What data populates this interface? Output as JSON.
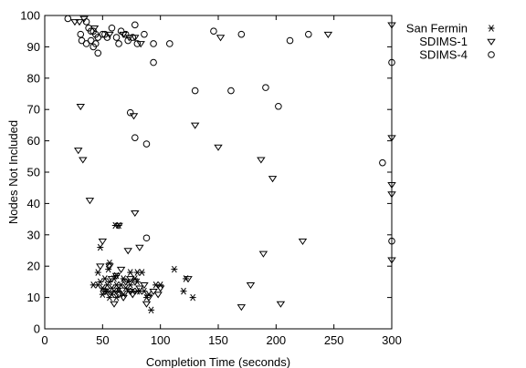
{
  "chart_data": {
    "type": "scatter",
    "title": "",
    "xlabel": "Completion Time (seconds)",
    "ylabel": "Nodes Not Included",
    "xlim": [
      0,
      300
    ],
    "ylim": [
      0,
      100
    ],
    "xticks": [
      0,
      50,
      100,
      150,
      200,
      250,
      300
    ],
    "yticks": [
      0,
      10,
      20,
      30,
      40,
      50,
      60,
      70,
      80,
      90,
      100
    ],
    "grid": false,
    "legend_position": "top-right",
    "series": [
      {
        "name": "San Fermin",
        "marker": "asterisk",
        "color": "#000000",
        "points": [
          [
            48,
            26
          ],
          [
            61,
            33
          ],
          [
            64,
            33
          ],
          [
            56,
            21
          ],
          [
            46,
            18
          ],
          [
            55,
            19
          ],
          [
            62,
            17
          ],
          [
            74,
            18
          ],
          [
            80,
            18
          ],
          [
            84,
            18
          ],
          [
            112,
            19
          ],
          [
            122,
            16
          ],
          [
            42,
            14
          ],
          [
            46,
            14
          ],
          [
            48,
            15
          ],
          [
            50,
            13
          ],
          [
            52,
            16
          ],
          [
            54,
            14
          ],
          [
            56,
            15
          ],
          [
            58,
            13
          ],
          [
            60,
            16
          ],
          [
            62,
            14
          ],
          [
            64,
            12
          ],
          [
            66,
            14
          ],
          [
            68,
            16
          ],
          [
            70,
            13
          ],
          [
            72,
            15
          ],
          [
            74,
            14
          ],
          [
            78,
            16
          ],
          [
            80,
            15
          ],
          [
            82,
            12
          ],
          [
            50,
            11
          ],
          [
            52,
            12
          ],
          [
            54,
            12
          ],
          [
            56,
            10
          ],
          [
            58,
            11
          ],
          [
            60,
            12
          ],
          [
            62,
            10
          ],
          [
            64,
            13
          ],
          [
            68,
            11
          ],
          [
            72,
            12
          ],
          [
            76,
            12
          ],
          [
            80,
            12
          ],
          [
            86,
            12
          ],
          [
            90,
            11
          ],
          [
            96,
            14
          ],
          [
            100,
            14
          ],
          [
            120,
            12
          ],
          [
            128,
            10
          ],
          [
            88,
            10
          ],
          [
            92,
            6
          ]
        ]
      },
      {
        "name": "SDIMS-1",
        "marker": "triangle-down",
        "color": "#000000",
        "points": [
          [
            26,
            98
          ],
          [
            30,
            98
          ],
          [
            34,
            99
          ],
          [
            43,
            96
          ],
          [
            56,
            94
          ],
          [
            68,
            94
          ],
          [
            73,
            93
          ],
          [
            78,
            93
          ],
          [
            83,
            91
          ],
          [
            152,
            93
          ],
          [
            245,
            94
          ],
          [
            300,
            97
          ],
          [
            31,
            71
          ],
          [
            77,
            68
          ],
          [
            130,
            65
          ],
          [
            29,
            57
          ],
          [
            33,
            54
          ],
          [
            150,
            58
          ],
          [
            187,
            54
          ],
          [
            197,
            48
          ],
          [
            300,
            61
          ],
          [
            300,
            46
          ],
          [
            300,
            43
          ],
          [
            39,
            41
          ],
          [
            64,
            33
          ],
          [
            78,
            37
          ],
          [
            50,
            28
          ],
          [
            72,
            25
          ],
          [
            82,
            26
          ],
          [
            189,
            24
          ],
          [
            223,
            28
          ],
          [
            300,
            22
          ],
          [
            48,
            20
          ],
          [
            56,
            20
          ],
          [
            66,
            19
          ],
          [
            58,
            16
          ],
          [
            62,
            17
          ],
          [
            70,
            15
          ],
          [
            74,
            16
          ],
          [
            78,
            15
          ],
          [
            100,
            13
          ],
          [
            52,
            12
          ],
          [
            56,
            11
          ],
          [
            64,
            11
          ],
          [
            68,
            10
          ],
          [
            74,
            12
          ],
          [
            76,
            11
          ],
          [
            82,
            13
          ],
          [
            86,
            14
          ],
          [
            90,
            10
          ],
          [
            94,
            12
          ],
          [
            98,
            11
          ],
          [
            60,
            8
          ],
          [
            88,
            8
          ],
          [
            124,
            16
          ],
          [
            178,
            14
          ],
          [
            170,
            7
          ],
          [
            204,
            8
          ]
        ]
      },
      {
        "name": "SDIMS-4",
        "marker": "circle",
        "color": "#000000",
        "points": [
          [
            20,
            99
          ],
          [
            36,
            98
          ],
          [
            78,
            97
          ],
          [
            31,
            94
          ],
          [
            38,
            96
          ],
          [
            40,
            95
          ],
          [
            42,
            95
          ],
          [
            44,
            94
          ],
          [
            46,
            93
          ],
          [
            50,
            94
          ],
          [
            52,
            94
          ],
          [
            54,
            93
          ],
          [
            58,
            96
          ],
          [
            62,
            93
          ],
          [
            66,
            95
          ],
          [
            70,
            94
          ],
          [
            72,
            92
          ],
          [
            76,
            93
          ],
          [
            80,
            91
          ],
          [
            86,
            94
          ],
          [
            94,
            91
          ],
          [
            108,
            91
          ],
          [
            146,
            95
          ],
          [
            170,
            94
          ],
          [
            212,
            92
          ],
          [
            228,
            94
          ],
          [
            32,
            92
          ],
          [
            36,
            91
          ],
          [
            40,
            92
          ],
          [
            42,
            90
          ],
          [
            44,
            91
          ],
          [
            46,
            88
          ],
          [
            64,
            91
          ],
          [
            94,
            85
          ],
          [
            300,
            85
          ],
          [
            130,
            76
          ],
          [
            161,
            76
          ],
          [
            191,
            77
          ],
          [
            202,
            71
          ],
          [
            74,
            69
          ],
          [
            78,
            61
          ],
          [
            88,
            59
          ],
          [
            292,
            53
          ],
          [
            88,
            29
          ],
          [
            300,
            28
          ]
        ]
      }
    ]
  }
}
